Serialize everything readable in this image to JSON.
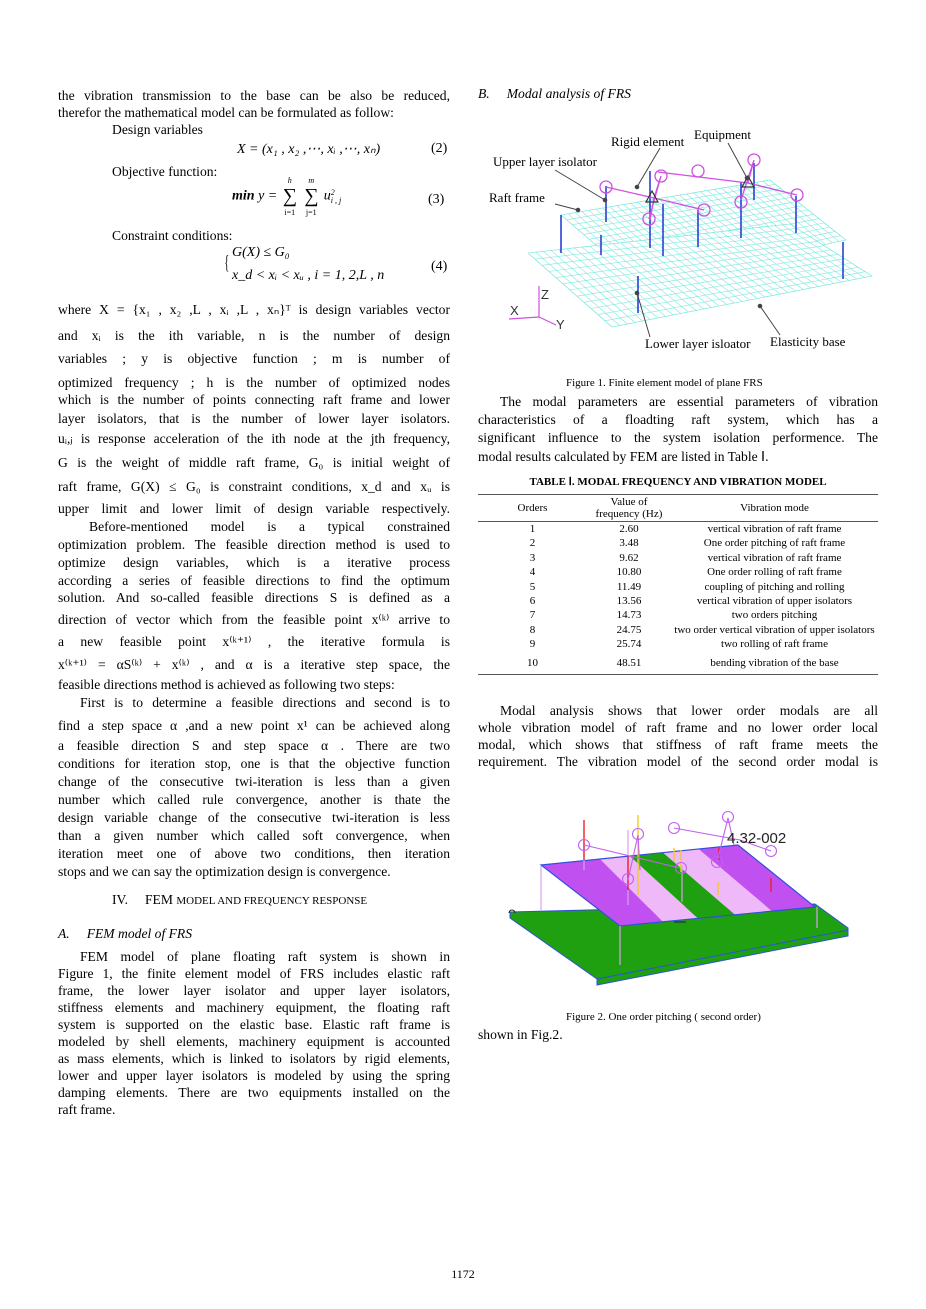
{
  "left_lines": [
    "the vibration transmission to the base can be also be reduced,",
    "therefor the mathematical model can be formulated as follow:",
    "Design variables",
    "Objective function:",
    "Constraint conditions:",
    "where X = {x₁ , x₂ ,L , xᵢ ,L , xₙ}ᵀ is design variables vector",
    "and xᵢ is the ith variable, n is the number of design",
    "variables ; y is objective function ; m is number of",
    "optimized frequency ; h is the number of optimized nodes",
    "which is the number of points connecting raft frame and lower",
    "layer isolators, that is the number of lower layer isolators.",
    "uᵢ,ⱼ is response acceleration of the ith node at the jth frequency,",
    "G is the weight of middle raft frame, G₀ is initial weight of",
    "raft frame, G(X) ≤ G₀ is constraint conditions, x_d and xᵤ is",
    "upper limit and lower limit of design variable respectively.",
    "Before-mentioned model is a typical constrained",
    "optimization problem. The feasible direction method is used to",
    "optimize design variables, which is a iterative process",
    "according a series of feasible directions to find the optimum",
    "solution. And so-called feasible directions S is defined as a",
    "direction of vector which from the feasible point x⁽ᵏ⁾ arrive to",
    "a new feasible point x⁽ᵏ⁺¹⁾ , the iterative formula is",
    "x⁽ᵏ⁺¹⁾ = αS⁽ᵏ⁾ + x⁽ᵏ⁾ , and α is a iterative step space, the",
    "feasible directions method is achieved as following two steps:",
    "First is to determine a feasible directions and second is to",
    "find a step space α ,and a new point x¹ can be achieved along",
    "a feasible direction S and step space α . There are two",
    "conditions for iteration stop, one is that the objective function",
    "change of the consecutive twi-iteration is less than a given",
    "number which called rule convergence, another is thate the",
    "design variable change of the consecutive twi-iteration is less",
    "than a given number which called soft convergence, when",
    "iteration meet one of above two conditions, then iteration",
    "stops and we can say the optimization design is convergence.",
    "FEM model of plane floating raft system is shown in",
    "Figure 1, the finite element model of FRS includes elastic raft",
    "frame, the lower layer isolator and upper layer isolators,",
    "stiffness elements and machinery equipment, the floating raft",
    "system is supported on the elastic base. Elastic raft frame is",
    "modeled by shell elements, machinery equipment is accounted",
    "as mass elements, which is linked to isolators by rigid elements,",
    "lower and upper layer isolators is modeled by using the spring",
    "damping elements. There are two equipments installed on the",
    "raft frame."
  ],
  "equations": {
    "eq2": {
      "text": "X = (x₁ , x₂ ,⋯, xᵢ ,⋯, xₙ)",
      "number": "(2)"
    },
    "eq3": {
      "min": "min",
      "lhs": "y =",
      "sum": "∑",
      "upper1": "h",
      "lower1": "i=1",
      "upper2": "m",
      "lower2": "j=1",
      "term": "u",
      "sup": "2",
      "sub": "i , j",
      "number": "(3)"
    },
    "eq4": {
      "line1": "G(X) ≤ G₀",
      "line2": "x_d < xᵢ < xᵤ ,   i = 1, 2,L  , n",
      "number": "(4)"
    }
  },
  "section_iv": {
    "number": "IV.",
    "title_first": "FEM",
    "title_rest": "MODEL AND FREQUENCY RESPONSE"
  },
  "section_a": {
    "letter": "A.",
    "title": "FEM model of FRS"
  },
  "section_b": {
    "letter": "B.",
    "title": "Modal analysis of FRS"
  },
  "right_lines_1": [
    "The modal parameters are essential parameters of vibration",
    "characteristics of a floadting raft system, which has a",
    "significant influence to the system isolation performence. The",
    "modal results calculated by FEM are listed in Table Ⅰ."
  ],
  "right_lines_2": [
    "Modal analysis shows that lower order modals are all",
    "whole vibration model of raft frame and no lower order local",
    "modal, which shows that stiffness of raft frame meets the",
    "requirement. The vibration model of the second order modal is",
    "shown in Fig.2."
  ],
  "figure1": {
    "caption": "Figure 1.  Finite element model of plane FRS",
    "labels": {
      "rigid": "Rigid element",
      "equipment": "Equipment",
      "upper": "Upper layer isolator",
      "raft": "Raft frame",
      "lower": "Lower layer isloator",
      "base": "Elasticity base",
      "x": "X",
      "y": "Y",
      "z": "Z"
    },
    "colors": {
      "mesh": "#7fe8e0",
      "isolator": "#2a3fd6",
      "rigid": "#d050e0"
    }
  },
  "figure2": {
    "caption": "Figure 2.    One order pitching ( second order)",
    "value_label": "4.32-002",
    "colors": {
      "base": "#1ea010",
      "purple": "#c050f0",
      "pink": "#efb8f8",
      "edge": "#3050e0"
    }
  },
  "table": {
    "title": "TABLE Ⅰ.  MODAL FREQUENCY AND VIBRATION MODEL",
    "headers": [
      "Orders",
      "Value of frequency (Hz)",
      "Vibration mode"
    ],
    "rows": [
      [
        "1",
        "2.60",
        "vertical vibration of raft frame"
      ],
      [
        "2",
        "3.48",
        "One order pitching of raft frame"
      ],
      [
        "3",
        "9.62",
        "vertical vibration of raft frame"
      ],
      [
        "4",
        "10.80",
        "One order rolling of raft frame"
      ],
      [
        "5",
        "11.49",
        "coupling of pitching and rolling"
      ],
      [
        "6",
        "13.56",
        "vertical vibration of upper isolators"
      ],
      [
        "7",
        "14.73",
        "two orders pitching"
      ],
      [
        "8",
        "24.75",
        "two order vertical vibration of upper isolators"
      ],
      [
        "9",
        "25.74",
        "two rolling of raft frame"
      ],
      [
        "10",
        "48.51",
        "bending vibration of the base"
      ]
    ]
  },
  "page_number": "1172"
}
